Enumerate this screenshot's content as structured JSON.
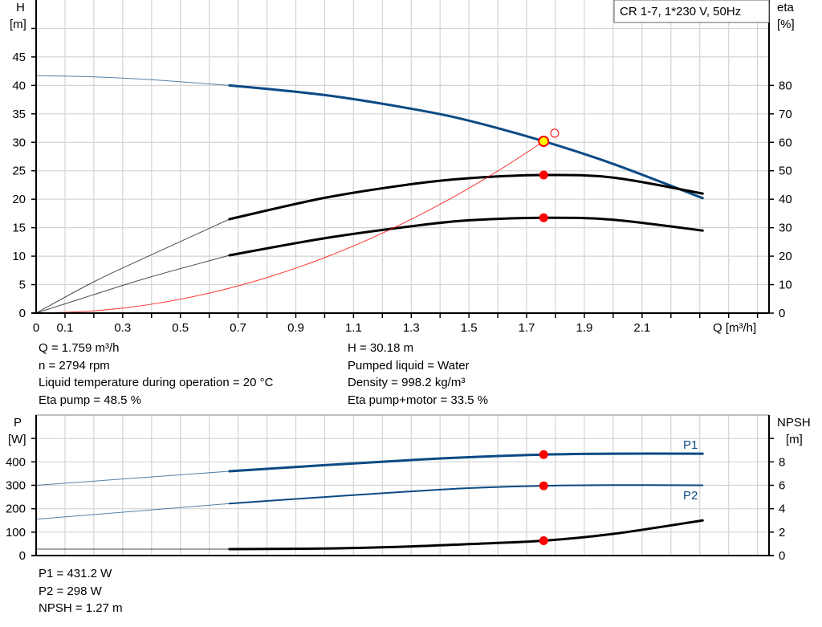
{
  "chart_data": [
    {
      "type": "line",
      "title_box": "CR 1-7, 1*230 V, 50Hz",
      "xlabel": "Q [m³/h]",
      "ylabel_left": [
        "H",
        "[m]"
      ],
      "ylabel_right": [
        "eta",
        "[%]"
      ],
      "xlim": [
        0,
        2.54
      ],
      "ylim_left": [
        0,
        55
      ],
      "ylim_right": [
        0,
        110
      ],
      "x_ticks": [
        "0",
        "0.1",
        "0.3",
        "0.5",
        "0.7",
        "0.9",
        "1.1",
        "1.3",
        "1.5",
        "1.7",
        "1.9",
        "2.1"
      ],
      "y_ticks_left": [
        "0",
        "5",
        "10",
        "15",
        "20",
        "25",
        "30",
        "35",
        "40",
        "45"
      ],
      "y_ticks_right": [
        "0",
        "10",
        "20",
        "30",
        "40",
        "50",
        "60",
        "70",
        "80"
      ],
      "grid": true,
      "series": [
        {
          "key": "H",
          "axis": "left",
          "color": "#0b4a84",
          "thick_from": 0.67,
          "points": [
            [
              0,
              41.7
            ],
            [
              0.2,
              41.5
            ],
            [
              0.4,
              41.0
            ],
            [
              0.67,
              40.0
            ],
            [
              1.0,
              38.3
            ],
            [
              1.3,
              35.9
            ],
            [
              1.5,
              33.8
            ],
            [
              1.759,
              30.18
            ],
            [
              2.0,
              26.2
            ],
            [
              2.31,
              20.2
            ]
          ]
        },
        {
          "key": "eta_pump",
          "axis": "right",
          "color": "#000000",
          "thick_from": 0.67,
          "points": [
            [
              0,
              0
            ],
            [
              0.2,
              11
            ],
            [
              0.4,
              20.5
            ],
            [
              0.67,
              33
            ],
            [
              1.0,
              40.5
            ],
            [
              1.3,
              45.3
            ],
            [
              1.5,
              47.4
            ],
            [
              1.759,
              48.5
            ],
            [
              2.0,
              47.6
            ],
            [
              2.31,
              42
            ]
          ]
        },
        {
          "key": "eta_pump_motor",
          "axis": "right",
          "color": "#000000",
          "thick_from": 0.67,
          "points": [
            [
              0,
              0
            ],
            [
              0.2,
              6.5
            ],
            [
              0.4,
              12.8
            ],
            [
              0.67,
              20.3
            ],
            [
              1.0,
              26.3
            ],
            [
              1.3,
              30.5
            ],
            [
              1.5,
              32.6
            ],
            [
              1.759,
              33.5
            ],
            [
              2.0,
              32.8
            ],
            [
              2.31,
              29
            ]
          ]
        },
        {
          "key": "system_curve",
          "axis": "left",
          "color": "#ff0000",
          "points": [
            [
              0,
              0
            ],
            [
              0.2,
              0.39
            ],
            [
              0.4,
              1.56
            ],
            [
              0.6,
              3.51
            ],
            [
              0.8,
              6.24
            ],
            [
              1.0,
              9.75
            ],
            [
              1.2,
              14.04
            ],
            [
              1.4,
              19.11
            ],
            [
              1.6,
              24.96
            ],
            [
              1.759,
              30.18
            ]
          ]
        }
      ],
      "operating_point": {
        "Q": 1.759,
        "H": 30.18,
        "eta_pump": 48.5,
        "eta_pump_motor": 33.5
      },
      "open_marker": {
        "Q": 1.797,
        "H": 31.6
      }
    },
    {
      "type": "line",
      "xlim": [
        0,
        2.54
      ],
      "ylabel_left": [
        "P",
        "[W]"
      ],
      "ylabel_right": [
        "NPSH",
        "[m]"
      ],
      "ylim_left": [
        0,
        600
      ],
      "ylim_right": [
        0,
        12
      ],
      "y_ticks_left": [
        "0",
        "100",
        "200",
        "300",
        "400"
      ],
      "y_ticks_right": [
        "0",
        "2",
        "4",
        "6",
        "8"
      ],
      "grid": true,
      "series": [
        {
          "key": "P1",
          "name": "P1",
          "axis": "left",
          "color": "#0b4a84",
          "thick_from": 0.67,
          "points": [
            [
              0,
              300
            ],
            [
              0.67,
              360
            ],
            [
              1.0,
              386
            ],
            [
              1.3,
              408
            ],
            [
              1.5,
              420
            ],
            [
              1.759,
              431.2
            ],
            [
              2.0,
              435
            ],
            [
              2.31,
              435
            ]
          ]
        },
        {
          "key": "P2",
          "name": "P2",
          "axis": "left",
          "color": "#0b4a84",
          "thick_from": 0.67,
          "thin": true,
          "points": [
            [
              0,
              155
            ],
            [
              0.67,
              222
            ],
            [
              1.0,
              250
            ],
            [
              1.3,
              274
            ],
            [
              1.5,
              288
            ],
            [
              1.759,
              298
            ],
            [
              2.0,
              301
            ],
            [
              2.31,
              300
            ]
          ]
        },
        {
          "key": "NPSH",
          "axis": "right",
          "color": "#000000",
          "thick_from": 0.67,
          "points": [
            [
              0,
              0.55
            ],
            [
              0.67,
              0.55
            ],
            [
              1.0,
              0.6
            ],
            [
              1.3,
              0.78
            ],
            [
              1.5,
              0.98
            ],
            [
              1.759,
              1.27
            ],
            [
              2.0,
              1.85
            ],
            [
              2.31,
              3.0
            ]
          ]
        }
      ],
      "operating_point": {
        "Q": 1.759,
        "P1": 431.2,
        "P2": 298,
        "NPSH": 1.27
      }
    }
  ],
  "info_top": {
    "left": [
      "Q = 1.759 m³/h",
      "n = 2794 rpm",
      "Liquid temperature during operation = 20 °C",
      "Eta pump = 48.5 %"
    ],
    "right": [
      "H = 30.18 m",
      "Pumped liquid = Water",
      "Density = 998.2 kg/m³",
      "Eta pump+motor = 33.5 %"
    ]
  },
  "info_bottom": [
    "P1 = 431.2 W",
    "P2 = 298 W",
    "NPSH = 1.27 m"
  ],
  "colors": {
    "curve_blue": "#0b4a84",
    "marker_red": "#ff0000",
    "op_fill": "#ffff00",
    "grid": "#d4d4d4"
  }
}
